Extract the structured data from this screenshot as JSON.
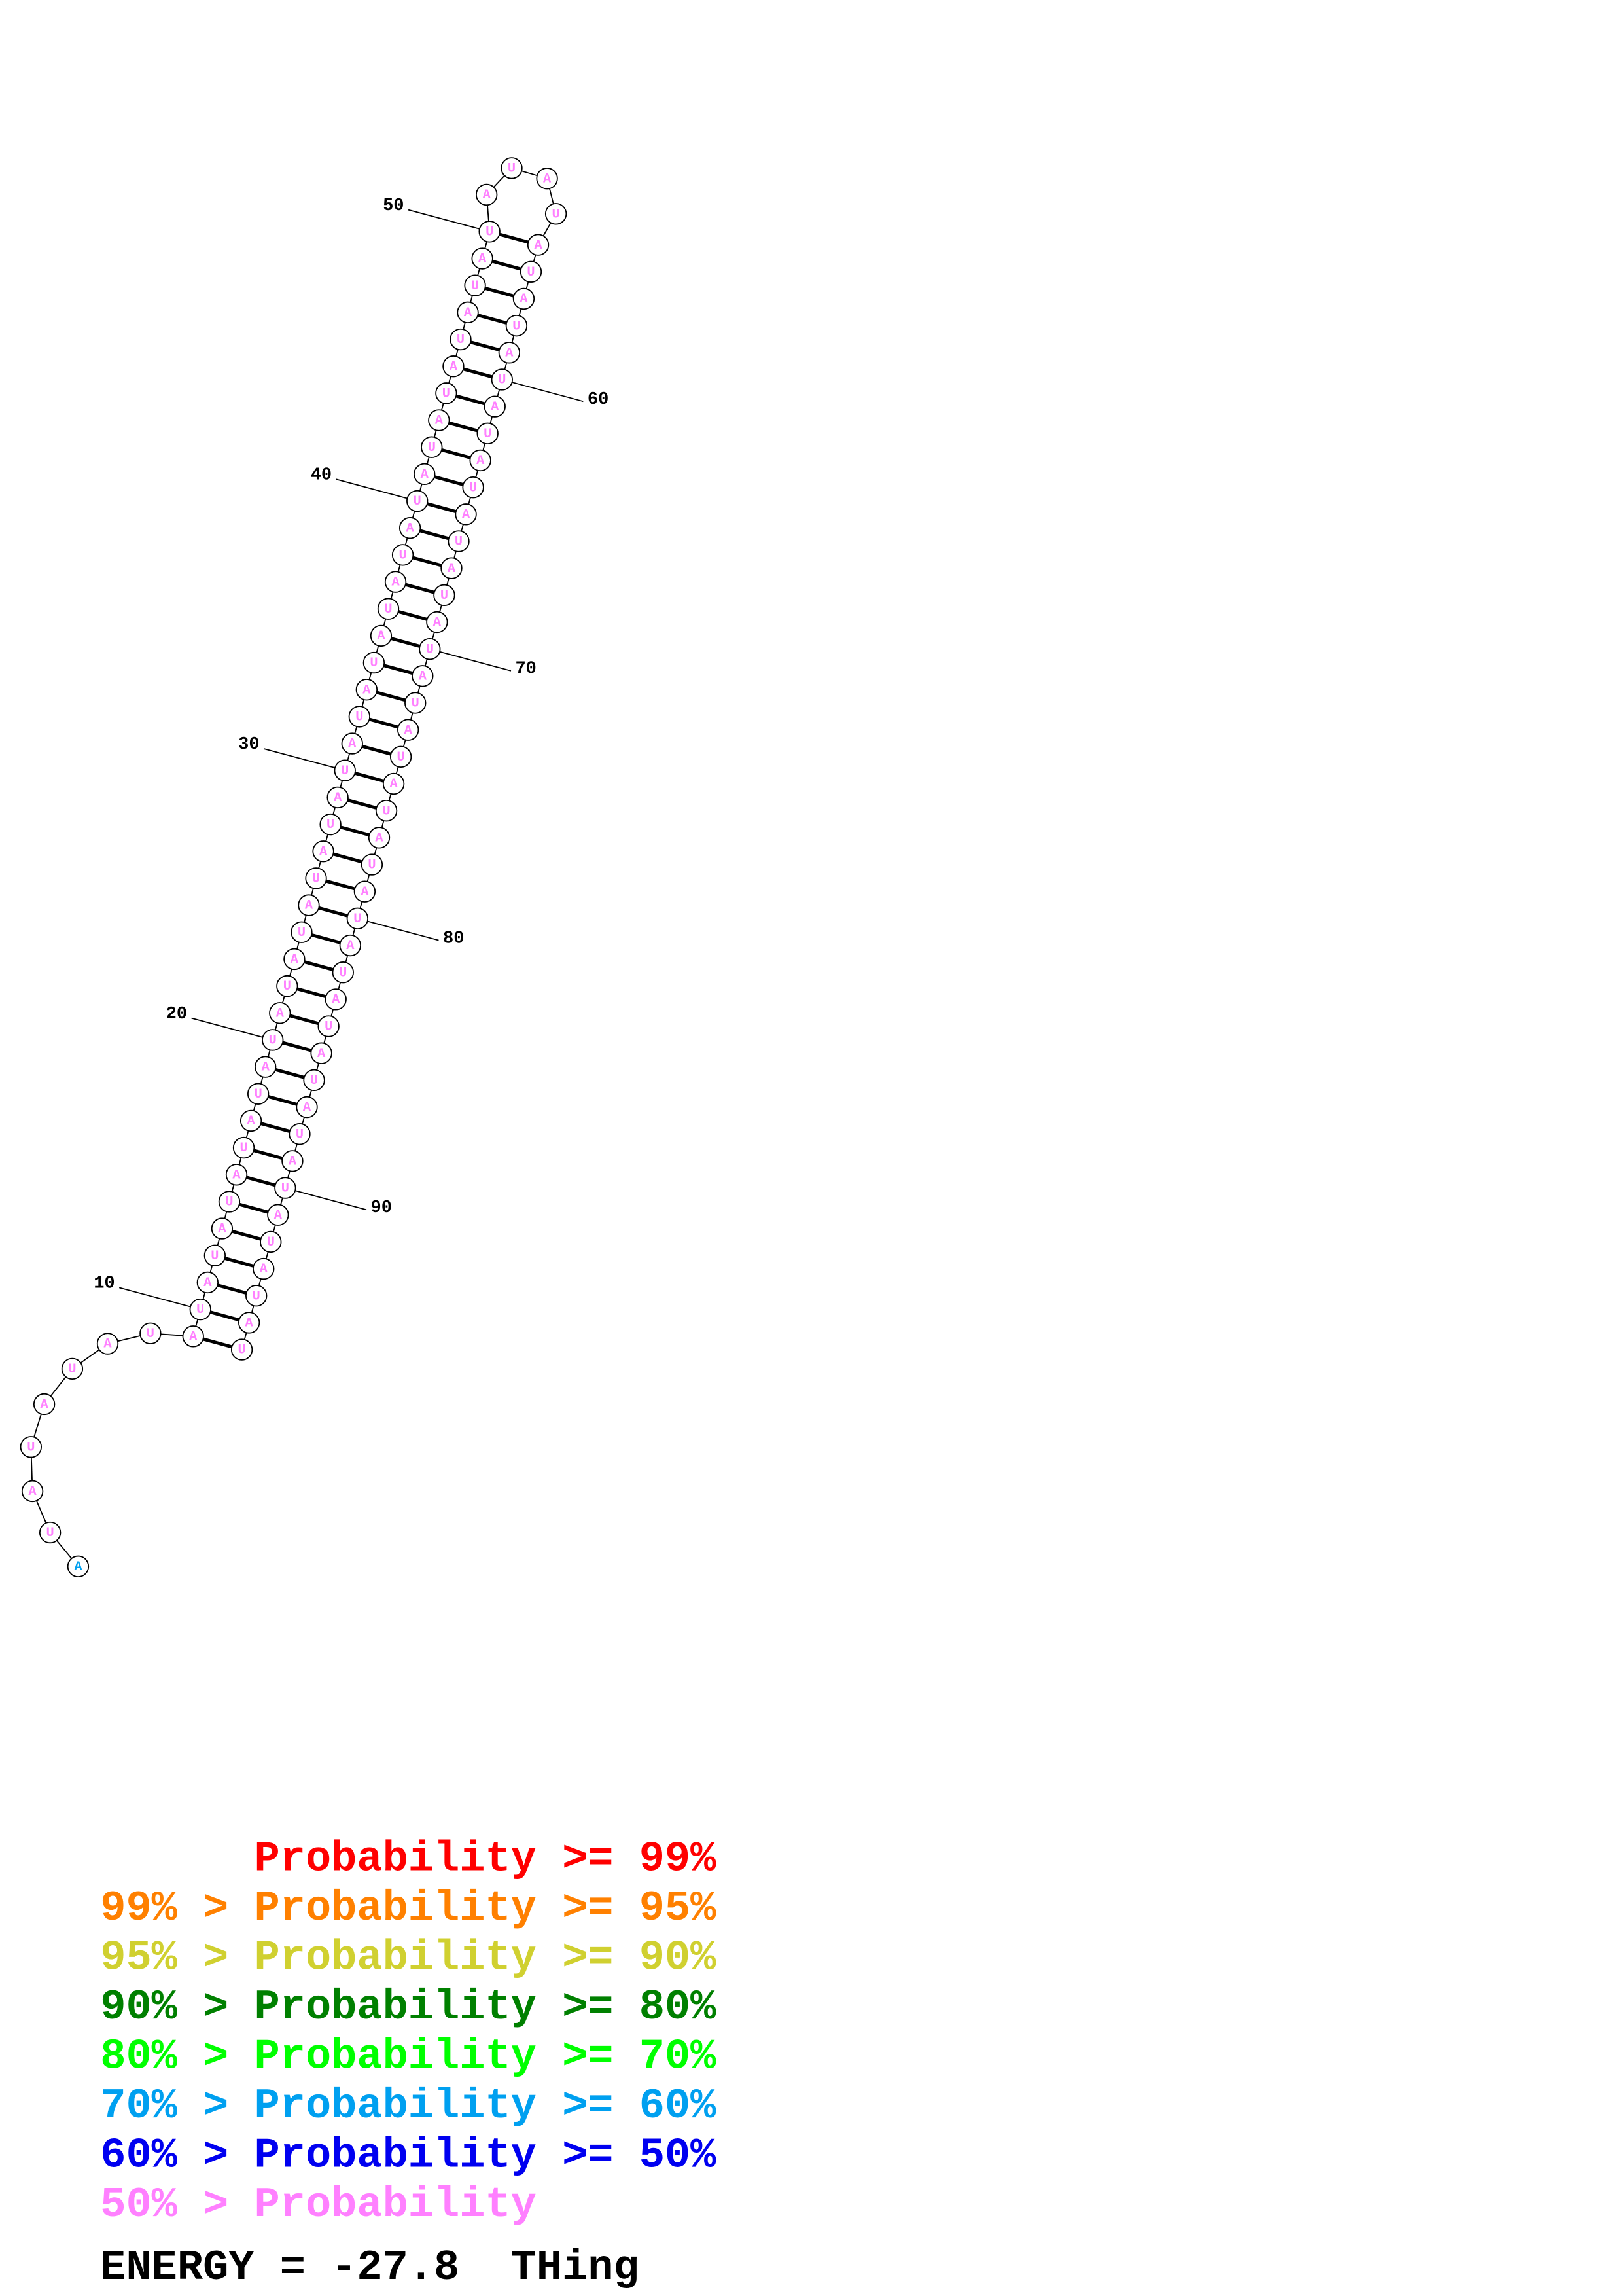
{
  "sequence": "AUAUAUAUAUAUAUAUAUAUAUAUAUAUAUAUAUAUAUAUAUAUAUAUAUAUAUAUAUAUAUAUAUAUAUAUAUAUAUAUAUAUAUAUAUAUAUAU",
  "base_colors": [
    "#00a0f0",
    "#ff80ff",
    "#ff80ff",
    "#ff80ff",
    "#ff80ff",
    "#ff80ff",
    "#ff80ff",
    "#ff80ff",
    "#ff80ff",
    "#ff80ff",
    "#ff80ff",
    "#ff80ff",
    "#ff80ff",
    "#ff80ff",
    "#ff80ff",
    "#ff80ff",
    "#ff80ff",
    "#ff80ff",
    "#ff80ff",
    "#ff80ff",
    "#ff80ff",
    "#ff80ff",
    "#ff80ff",
    "#ff80ff",
    "#ff80ff",
    "#ff80ff",
    "#ff80ff",
    "#ff80ff",
    "#ff80ff",
    "#ff80ff",
    "#ff80ff",
    "#ff80ff",
    "#ff80ff",
    "#ff80ff",
    "#ff80ff",
    "#ff80ff",
    "#ff80ff",
    "#ff80ff",
    "#ff80ff",
    "#ff80ff",
    "#ff80ff",
    "#ff80ff",
    "#ff80ff",
    "#ff80ff",
    "#ff80ff",
    "#ff80ff",
    "#ff80ff",
    "#ff80ff",
    "#ff80ff",
    "#ff80ff",
    "#ff80ff",
    "#ff80ff",
    "#ff80ff",
    "#ff80ff",
    "#ff80ff",
    "#ff80ff",
    "#ff80ff",
    "#ff80ff",
    "#ff80ff",
    "#ff80ff",
    "#ff80ff",
    "#ff80ff",
    "#ff80ff",
    "#ff80ff",
    "#ff80ff",
    "#ff80ff",
    "#ff80ff",
    "#ff80ff",
    "#ff80ff",
    "#ff80ff",
    "#ff80ff",
    "#ff80ff",
    "#ff80ff",
    "#ff80ff",
    "#ff80ff",
    "#ff80ff",
    "#ff80ff",
    "#ff80ff",
    "#ff80ff",
    "#ff80ff",
    "#ff80ff",
    "#ff80ff",
    "#ff80ff",
    "#ff80ff",
    "#ff80ff",
    "#ff80ff",
    "#ff80ff",
    "#ff80ff",
    "#ff80ff",
    "#ff80ff",
    "#ff80ff",
    "#ff80ff",
    "#ff80ff",
    "#ff80ff",
    "#ff80ff",
    "#ff80ff"
  ],
  "stem": {
    "start": 9,
    "end": 96,
    "loop_start": 51,
    "loop_end": 54
  },
  "position_labels": [
    10,
    20,
    30,
    40,
    50,
    60,
    70,
    80,
    90
  ],
  "legend": [
    {
      "text": "Probability >= 99%",
      "color": "#ff0000"
    },
    {
      "text": "99% > Probability >= 95%",
      "color": "#ff8000"
    },
    {
      "text": "95% > Probability >= 90%",
      "color": "#d0d030"
    },
    {
      "text": "90% > Probability >= 80%",
      "color": "#008000"
    },
    {
      "text": "80% > Probability >= 70%",
      "color": "#00ff00"
    },
    {
      "text": "70% > Probability >= 60%",
      "color": "#00a0f0"
    },
    {
      "text": "60% > Probability >= 50%",
      "color": "#0000f0"
    },
    {
      "text": "50% > Probability",
      "color": "#ff80ff"
    }
  ],
  "energy_line": "ENERGY = -27.8  THing"
}
